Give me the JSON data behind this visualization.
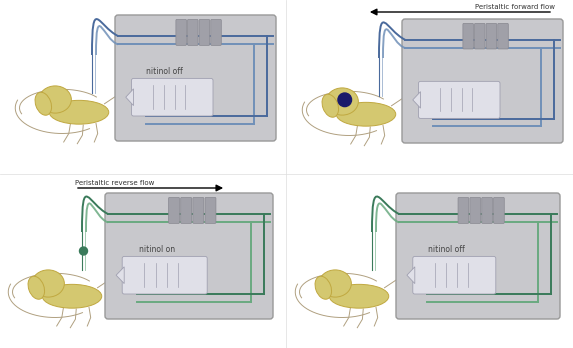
{
  "bg_color": "#ffffff",
  "tube_blue": "#4a6a9c",
  "tube_blue2": "#7090b8",
  "tube_green": "#3a7a5a",
  "tube_green2": "#6aaa80",
  "body_yellow": "#d4c870",
  "body_outline": "#c0a840",
  "sketch_color": "#b0a080",
  "dark_dot": "#1a1a6a",
  "panel_bg": "#c8c8cc",
  "panel_edge": "#999999",
  "bar_color": "#a0a0a8",
  "bar_edge": "#888890",
  "syr_body": "#e0e0e8",
  "syr_edge": "#a0a0b0",
  "arrow_color": "#111111",
  "text_color": "#444444",
  "label_fwd": "Peristaltic forward flow",
  "label_rev": "Peristaltic reverse flow",
  "panels": [
    {
      "label": "nitinol off",
      "tube": "blue",
      "has_dot": false
    },
    {
      "label": "",
      "tube": "blue",
      "has_dot": true
    },
    {
      "label": "nitinol on",
      "tube": "green",
      "has_dot": false
    },
    {
      "label": "nitinol off",
      "tube": "green",
      "has_dot": false
    }
  ]
}
